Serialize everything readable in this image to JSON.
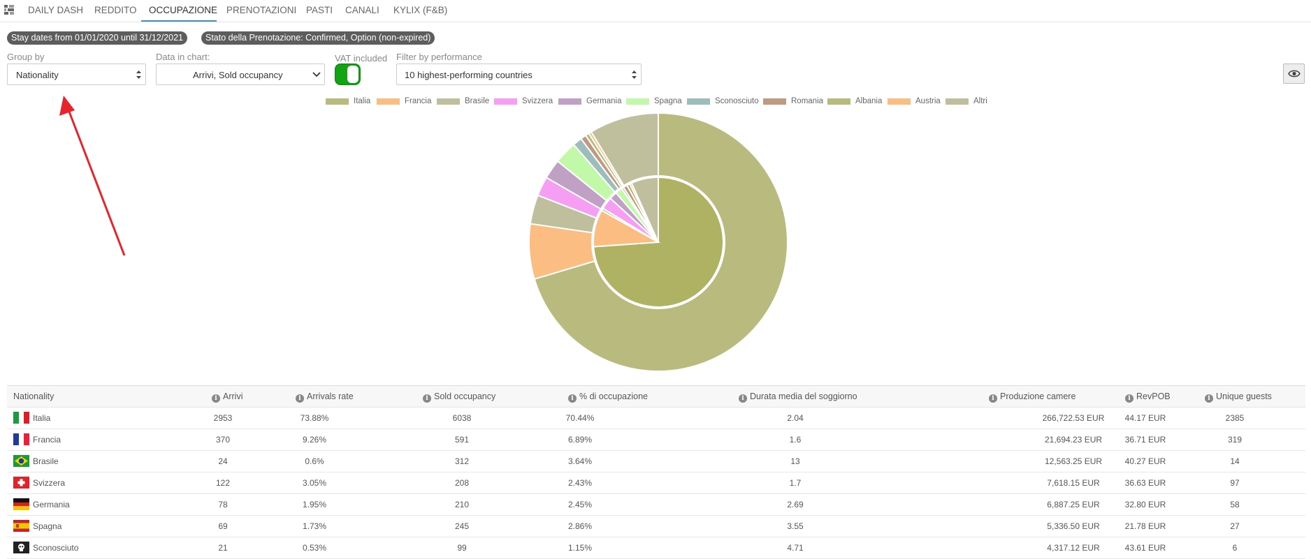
{
  "nav": {
    "tabs": [
      {
        "label": "DAILY DASH"
      },
      {
        "label": "REDDITO"
      },
      {
        "label": "OCCUPAZIONE"
      },
      {
        "label": "PRENOTAZIONI"
      },
      {
        "label": "PASTI"
      },
      {
        "label": "CANALI"
      },
      {
        "label": "KYLIX (F&B)"
      }
    ],
    "active_tab": "OCCUPAZIONE",
    "accent_color": "#3f8fd2"
  },
  "filters": {
    "stay_dates": "Stay dates from 01/01/2020 until 31/12/2021",
    "booking_status": "Stato della Prenotazione: Confirmed, Option (non-expired)"
  },
  "controls": {
    "group_by_label": "Group by",
    "group_by_value": "Nationality",
    "data_in_chart_label": "Data in chart:",
    "data_in_chart_value": "Arrivi, Sold occupancy",
    "vat_label": "VAT included",
    "vat_on": true,
    "filter_performance_label": "Filter by performance",
    "filter_performance_value": "10 highest-performing countries"
  },
  "chart_data": {
    "type": "pie",
    "subtype": "nested-donut",
    "legend_position": "top",
    "categories": [
      "Italia",
      "Francia",
      "Brasile",
      "Svizzera",
      "Germania",
      "Spagna",
      "Sconosciuto",
      "Romania",
      "Albania",
      "Austria",
      "Altri"
    ],
    "colors": [
      "#b9bb7e",
      "#fbbd82",
      "#c0bf9d",
      "#f59ef4",
      "#c0a1c5",
      "#c2f9a9",
      "#9dbcbc",
      "#c09a80",
      "#b9bb7e",
      "#fbbd82",
      "#c0bf9d"
    ],
    "series": [
      {
        "values": [
          2953,
          370,
          24,
          122,
          78,
          69,
          21,
          40,
          30,
          20,
          270
        ]
      },
      {
        "values": [
          6038,
          591,
          312,
          208,
          210,
          245,
          99,
          60,
          40,
          30,
          745
        ]
      }
    ]
  },
  "table": {
    "headers": [
      "Nationality",
      "Arrivi",
      "Arrivals rate",
      "Sold occupancy",
      "% di occupazione",
      "Durata media del soggiorno",
      "Produzione camere",
      "RevPOB",
      "Unique guests"
    ],
    "rows": [
      {
        "flag": "flag-italy",
        "cells": [
          "Italia",
          "2953",
          "73.88%",
          "6038",
          "70.44%",
          "2.04",
          "266,722.53 EUR",
          "44.17 EUR",
          "2385"
        ]
      },
      {
        "flag": "flag-france",
        "cells": [
          "Francia",
          "370",
          "9.26%",
          "591",
          "6.89%",
          "1.6",
          "21,694.23 EUR",
          "36.71 EUR",
          "319"
        ]
      },
      {
        "flag": "flag-brazil",
        "cells": [
          "Brasile",
          "24",
          "0.6%",
          "312",
          "3.64%",
          "13",
          "12,563.25 EUR",
          "40.27 EUR",
          "14"
        ]
      },
      {
        "flag": "flag-switzerland",
        "cells": [
          "Svizzera",
          "122",
          "3.05%",
          "208",
          "2.43%",
          "1.7",
          "7,618.15 EUR",
          "36.63 EUR",
          "97"
        ]
      },
      {
        "flag": "flag-germany",
        "cells": [
          "Germania",
          "78",
          "1.95%",
          "210",
          "2.45%",
          "2.69",
          "6,887.25 EUR",
          "32.80 EUR",
          "58"
        ]
      },
      {
        "flag": "flag-spain",
        "cells": [
          "Spagna",
          "69",
          "1.73%",
          "245",
          "2.86%",
          "3.55",
          "5,336.50 EUR",
          "21.78 EUR",
          "27"
        ]
      },
      {
        "flag": "flag-unknown",
        "cells": [
          "Sconosciuto",
          "21",
          "0.53%",
          "99",
          "1.15%",
          "4.71",
          "4,317.12 EUR",
          "43.61 EUR",
          "6"
        ]
      }
    ]
  }
}
